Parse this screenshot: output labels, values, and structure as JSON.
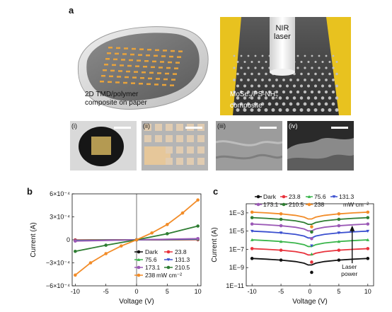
{
  "panel_a": {
    "label": "a",
    "left_caption_lines": [
      "2D TMD/polymer",
      "composite on paper"
    ],
    "laser_label_lines": [
      "NIR",
      "laser"
    ],
    "right_caption_line1": "MoSe",
    "right_caption_sub": "2",
    "right_caption_rest": "/PS-NH",
    "right_caption_sub2": "2",
    "right_caption_line2": "composite",
    "micrograph_labels": [
      "(i)",
      "(ii)",
      "(iii)",
      "(iv)"
    ]
  },
  "panel_b": {
    "label": "b"
  },
  "panel_c": {
    "label": "c"
  },
  "chart_data": [
    {
      "type": "line",
      "panel": "b",
      "xlabel": "Voltage (V)",
      "ylabel": "Current (A)",
      "xlim": [
        -10.5,
        10.5
      ],
      "ylim": [
        -0.0006,
        0.0006
      ],
      "x_ticks": [
        "-10",
        "-5",
        "0",
        "5",
        "10"
      ],
      "x_tick_values": [
        -10,
        -5,
        0,
        5,
        10
      ],
      "y_tick_labels": [
        "6×10⁻⁴",
        "3×10⁻⁴",
        "0",
        "−3×10⁻⁴",
        "−6×10⁻⁴"
      ],
      "y_tick_values": [
        0.0006,
        0.0003,
        0,
        -0.0003,
        -0.0006
      ],
      "legend_position": "bottom-right",
      "legend_unit": "mW cm⁻²",
      "series": [
        {
          "name": "Dark",
          "color": "#111111",
          "marker": "circle",
          "x": [
            -10,
            0,
            10
          ],
          "y": [
            -2e-06,
            0,
            2e-06
          ]
        },
        {
          "name": "23.8",
          "color": "#e8323c",
          "marker": "circle",
          "x": [
            -10,
            0,
            10
          ],
          "y": [
            -4e-06,
            0,
            4e-06
          ]
        },
        {
          "name": "75.6",
          "color": "#39b54a",
          "marker": "triangle-up",
          "x": [
            -10,
            0,
            10
          ],
          "y": [
            -8e-06,
            0,
            8e-06
          ]
        },
        {
          "name": "131.3",
          "color": "#3a4fcf",
          "marker": "triangle-down",
          "x": [
            -10,
            0,
            10
          ],
          "y": [
            -1.2e-05,
            0,
            1.2e-05
          ]
        },
        {
          "name": "173.1",
          "color": "#9b59b6",
          "marker": "circle",
          "x": [
            -10,
            0,
            10
          ],
          "y": [
            -1.6e-05,
            0,
            1.6e-05
          ]
        },
        {
          "name": "210.5",
          "color": "#2e7d32",
          "marker": "circle",
          "x": [
            -10,
            -5,
            0,
            5,
            10
          ],
          "y": [
            -0.00015,
            -7e-05,
            0,
            8e-05,
            0.00018
          ]
        },
        {
          "name": "238",
          "color": "#f28c28",
          "marker": "circle",
          "x": [
            -10,
            -7.5,
            -5,
            -2.5,
            0,
            2.5,
            5,
            7.5,
            10
          ],
          "y": [
            -0.00046,
            -0.0003,
            -0.00018,
            -8e-05,
            0,
            9e-05,
            0.0002,
            0.00035,
            0.00052
          ]
        }
      ]
    },
    {
      "type": "line",
      "panel": "c",
      "xlabel": "Voltage (V)",
      "ylabel": "Current (A)",
      "yscale": "log",
      "xlim": [
        -11,
        11
      ],
      "ylim": [
        1e-11,
        0.01
      ],
      "x_ticks": [
        "-10",
        "-5",
        "0",
        "5",
        "10"
      ],
      "x_tick_values": [
        -10,
        -5,
        0,
        5,
        10
      ],
      "y_tick_labels": [
        "1E−3",
        "1E−5",
        "1E−7",
        "1E−9",
        "1E−11"
      ],
      "y_tick_values": [
        0.001,
        1e-05,
        1e-07,
        1e-09,
        1e-11
      ],
      "legend_position": "top",
      "legend_unit": "mW cm⁻²",
      "annotation_lines": [
        "Laser",
        "power"
      ],
      "series": [
        {
          "name": "Dark",
          "color": "#111111",
          "marker": "circle",
          "plateau": 1e-08,
          "dip": 3e-10
        },
        {
          "name": "23.8",
          "color": "#e8323c",
          "marker": "circle",
          "plateau": 1.2e-07,
          "dip": 4e-09
        },
        {
          "name": "75.6",
          "color": "#39b54a",
          "marker": "triangle-up",
          "plateau": 1.1e-06,
          "dip": 3e-08
        },
        {
          "name": "131.3",
          "color": "#3a4fcf",
          "marker": "triangle-down",
          "plateau": 1e-05,
          "dip": 2.5e-07
        },
        {
          "name": "173.1",
          "color": "#9b59b6",
          "marker": "circle",
          "plateau": 6e-05,
          "dip": 1.5e-06
        },
        {
          "name": "210.5",
          "color": "#2e7d32",
          "marker": "circle",
          "plateau": 0.0003,
          "dip": 8e-06
        },
        {
          "name": "238",
          "color": "#f28c28",
          "marker": "circle",
          "plateau": 0.0012,
          "dip": 3e-05
        }
      ]
    }
  ]
}
